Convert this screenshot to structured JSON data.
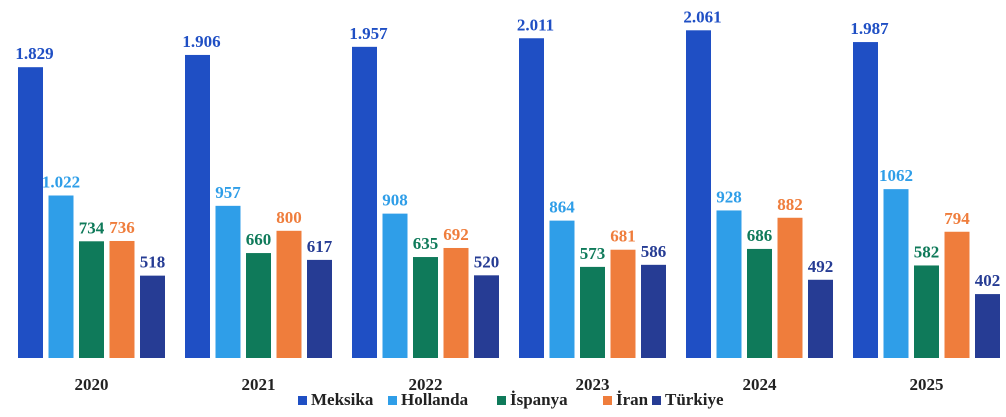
{
  "chart_data": {
    "type": "bar",
    "categories": [
      "2020",
      "2021",
      "2022",
      "2023",
      "2024",
      "2025"
    ],
    "series": [
      {
        "name": "Meksika",
        "color": "#1f4fc4",
        "values": [
          1829,
          1906,
          1957,
          2011,
          2061,
          1987
        ],
        "value_labels": [
          "1.829",
          "1.906",
          "1.957",
          "2.011",
          "2.061",
          "1.987"
        ]
      },
      {
        "name": "Hollanda",
        "color": "#2f9ee8",
        "values": [
          1022,
          957,
          908,
          864,
          928,
          1062
        ],
        "value_labels": [
          "1.022",
          "957",
          "908",
          "864",
          "928",
          "1062"
        ]
      },
      {
        "name": "İspanya",
        "color": "#0f7a5a",
        "values": [
          734,
          660,
          635,
          573,
          686,
          582
        ]
      },
      {
        "name": "İran",
        "color": "#ef7d3c",
        "values": [
          736,
          800,
          692,
          681,
          882,
          794
        ]
      },
      {
        "name": "Türkiye",
        "color": "#263c94",
        "values": [
          518,
          617,
          520,
          586,
          492,
          402
        ]
      }
    ],
    "legend": "bottom"
  }
}
